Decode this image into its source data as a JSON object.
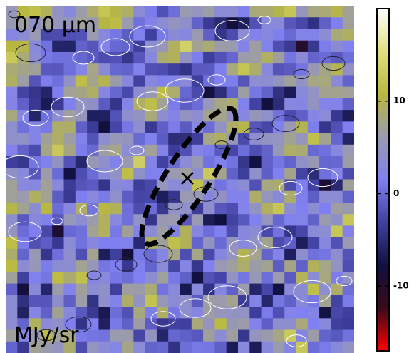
{
  "chart_data": {
    "type": "image",
    "label": "070 μm",
    "unit_label": "MJy/sr",
    "colorbar": {
      "ylim": [
        -17,
        20
      ],
      "yticks": [
        -10,
        0,
        10
      ],
      "colormap": [
        "#ff0000",
        "#3a0a1a",
        "#101040",
        "#4040a0",
        "#8080f0",
        "#9a9ab0",
        "#b8b840",
        "#e0e080",
        "#ffffff"
      ]
    }
  }
}
